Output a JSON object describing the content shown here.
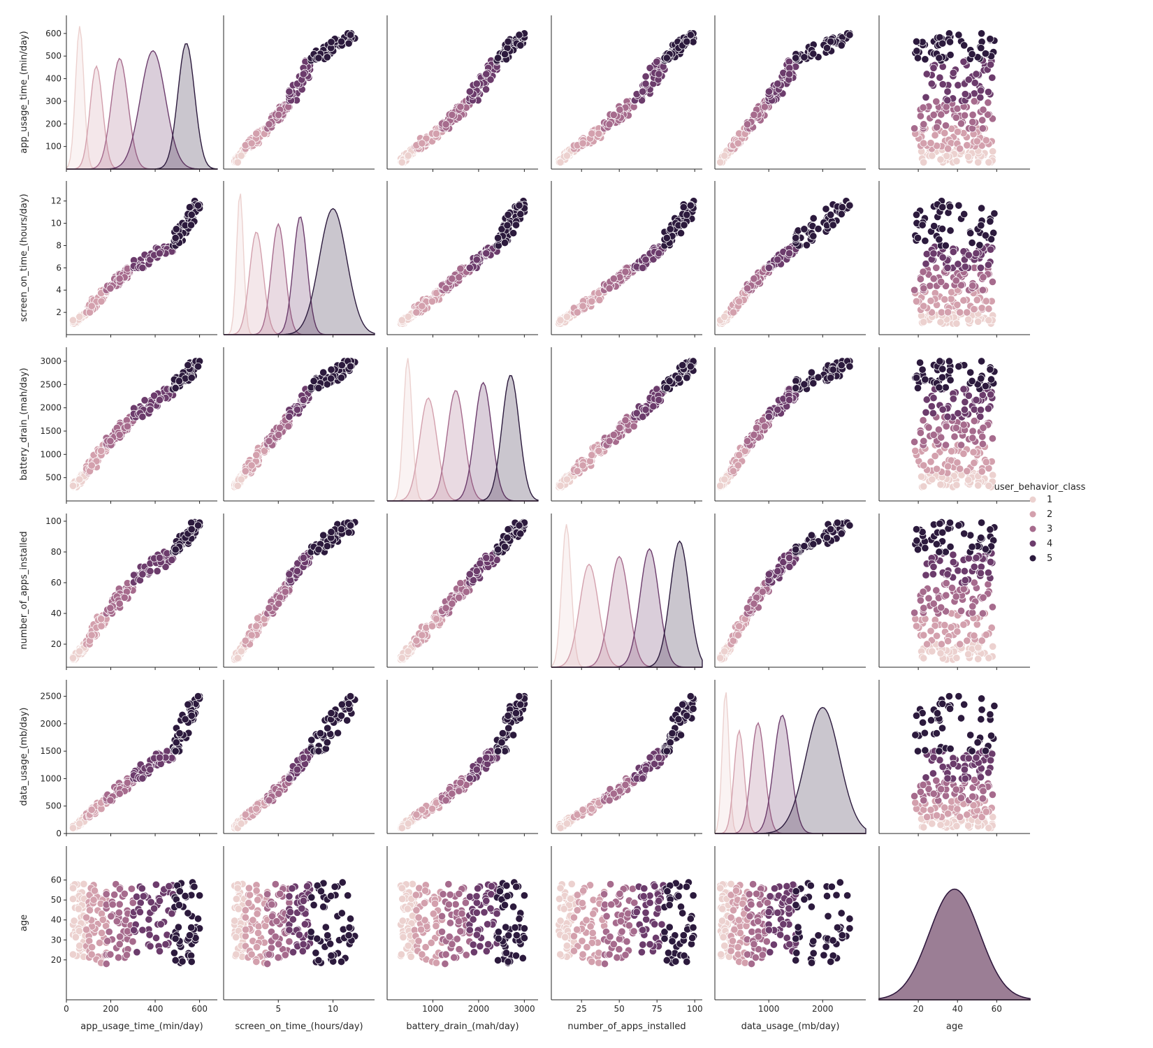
{
  "chart_data": {
    "type": "scatter",
    "kind": "pairplot",
    "variables": [
      {
        "name": "app_usage_time_(min/day)",
        "lim": [
          0,
          680
        ],
        "ticks": [
          0,
          200,
          400,
          600
        ],
        "ytick_show": [
          100,
          200,
          300,
          400,
          500,
          600
        ]
      },
      {
        "name": "screen_on_time_(hours/day)",
        "lim": [
          0,
          13.8
        ],
        "ticks": [
          5,
          10
        ],
        "ytick_show": [
          2,
          4,
          6,
          8,
          10,
          12
        ]
      },
      {
        "name": "battery_drain_(mah/day)",
        "lim": [
          0,
          3300
        ],
        "ticks": [
          1000,
          2000,
          3000
        ],
        "ytick_show": [
          500,
          1000,
          1500,
          2000,
          2500,
          3000
        ]
      },
      {
        "name": "number_of_apps_installed",
        "lim": [
          5,
          105
        ],
        "ticks": [
          25,
          50,
          75,
          100
        ],
        "ytick_show": [
          20,
          40,
          60,
          80,
          100
        ]
      },
      {
        "name": "data_usage_(mb/day)",
        "lim": [
          0,
          2800
        ],
        "ticks": [
          1000,
          2000
        ],
        "ytick_show": [
          0,
          500,
          1000,
          1500,
          2000,
          2500
        ]
      },
      {
        "name": "age",
        "lim": [
          0,
          77
        ],
        "ticks": [
          20,
          40,
          60
        ],
        "ytick_show": [
          20,
          30,
          40,
          50,
          60
        ]
      }
    ],
    "hue": "user_behavior_class",
    "classes": [
      {
        "name": "1",
        "color": "#ecd1cf",
        "ranges": [
          [
            30,
            90
          ],
          [
            1,
            2
          ],
          [
            300,
            600
          ],
          [
            10,
            20
          ],
          [
            100,
            300
          ],
          [
            18,
            59
          ]
        ]
      },
      {
        "name": "2",
        "color": "#d3a0ad",
        "ranges": [
          [
            90,
            180
          ],
          [
            2,
            4
          ],
          [
            600,
            1200
          ],
          [
            20,
            40
          ],
          [
            300,
            600
          ],
          [
            18,
            59
          ]
        ]
      },
      {
        "name": "3",
        "color": "#a66b8d",
        "ranges": [
          [
            180,
            300
          ],
          [
            4,
            6
          ],
          [
            1200,
            1800
          ],
          [
            40,
            60
          ],
          [
            600,
            1000
          ],
          [
            18,
            59
          ]
        ]
      },
      {
        "name": "4",
        "color": "#6c3c6c",
        "ranges": [
          [
            300,
            480
          ],
          [
            6,
            8
          ],
          [
            1800,
            2400
          ],
          [
            60,
            80
          ],
          [
            1000,
            1500
          ],
          [
            18,
            59
          ]
        ]
      },
      {
        "name": "5",
        "color": "#2c1a3d",
        "ranges": [
          [
            480,
            600
          ],
          [
            8,
            12
          ],
          [
            2400,
            3000
          ],
          [
            80,
            100
          ],
          [
            1500,
            2500
          ],
          [
            18,
            59
          ]
        ]
      }
    ],
    "points_per_class": 50,
    "legend_title": "user_behavior_class",
    "legend_position": "right",
    "diagonal": "kde",
    "grid": false
  }
}
